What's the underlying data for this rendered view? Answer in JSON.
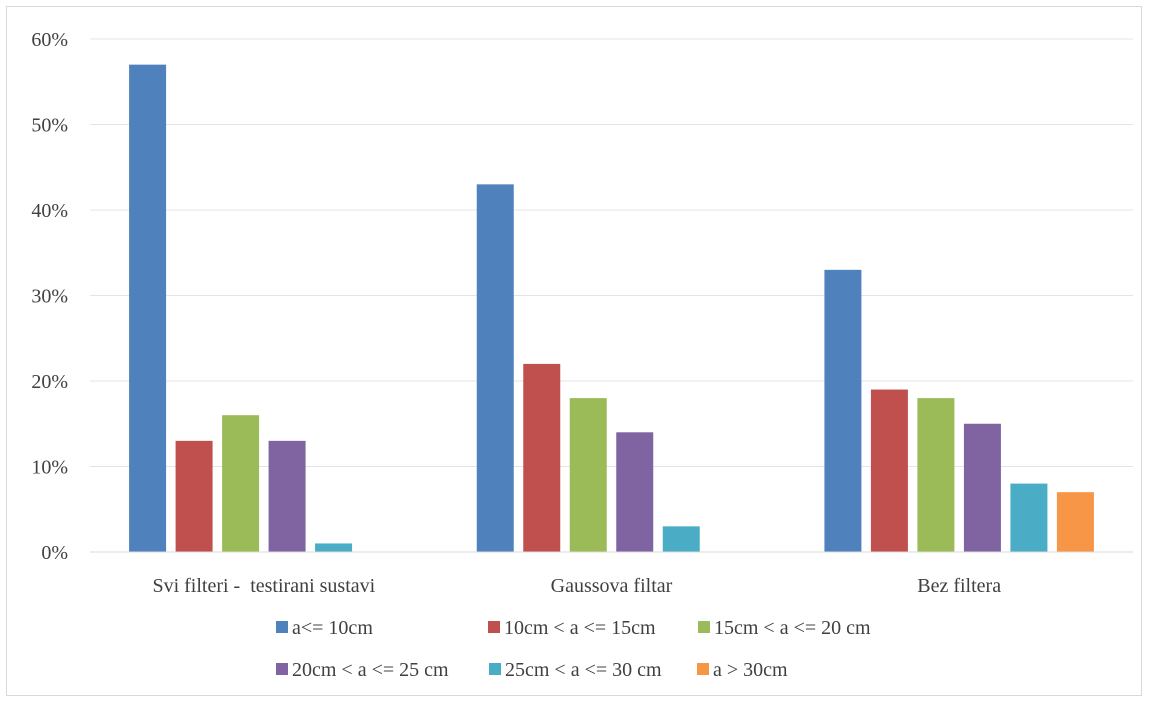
{
  "chart_data": {
    "type": "bar",
    "categories": [
      "Svi filteri -  testirani sustavi",
      "Gaussova filtar",
      "Bez filtera"
    ],
    "series": [
      {
        "name": "a<= 10cm",
        "color": "#4F81BD",
        "values": [
          57,
          43,
          33
        ]
      },
      {
        "name": "10cm < a <= 15cm",
        "color": "#C0504D",
        "values": [
          13,
          22,
          19
        ]
      },
      {
        "name": "15cm < a <= 20 cm",
        "color": "#9BBB59",
        "values": [
          16,
          18,
          18
        ]
      },
      {
        "name": "20cm < a <= 25 cm",
        "color": "#8064A2",
        "values": [
          13,
          14,
          15
        ]
      },
      {
        "name": "25cm < a <= 30 cm",
        "color": "#4BACC6",
        "values": [
          1,
          3,
          8
        ]
      },
      {
        "name": "a > 30cm",
        "color": "#F79646",
        "values": [
          0,
          0,
          7
        ]
      }
    ],
    "ylim": [
      0,
      60
    ],
    "yticks": [
      "0%",
      "10%",
      "20%",
      "30%",
      "40%",
      "50%",
      "60%"
    ],
    "grid": true,
    "legend_position": "bottom"
  }
}
